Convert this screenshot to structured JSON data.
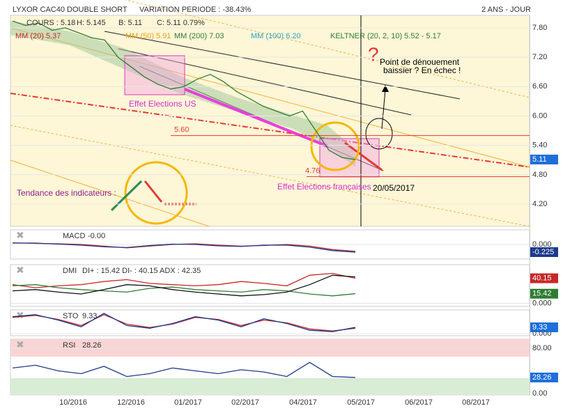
{
  "header": {
    "title": "LYXOR CAC40 DOUBLE SHORT",
    "variation": "VARIATION PERIODE : -38.43%",
    "period": "2 ANS - JOUR"
  },
  "legend": [
    "COURS : 5.18",
    "H: 5.145",
    "B: 5.11",
    "C: 5.11 0.79%",
    "MM (20) 5.37",
    "MM (50) 5.91",
    "MM (200) 7.03",
    "MM (100) 6.20",
    "KELTNER (20, 2, 10) 5.52 - 5.17"
  ],
  "annotations": {
    "us": "Effet Elections US",
    "fr": "Effet Elections françaises",
    "date": "20/05/2017",
    "question": "?",
    "point": "Point de dénouement",
    "point2": "baissier ? En échec !",
    "tendance": "Tendance des indicateurs :"
  },
  "x_axis": [
    "10/2016",
    "12/2016",
    "01/2017",
    "02/2017",
    "04/2017",
    "05/2017",
    "06/2017",
    "08/2017"
  ],
  "chart_data": [
    {
      "type": "line",
      "color": "#2e7d32",
      "values": [
        7.94,
        7.85,
        7.9,
        7.75,
        7.8,
        7.7,
        7.6,
        7.55,
        7.2,
        7.0,
        6.8,
        6.65,
        6.55,
        6.6,
        6.75,
        6.85,
        6.7,
        6.5,
        6.35,
        6.2,
        6.1,
        6.0,
        6.1,
        5.7,
        5.3,
        5.15,
        5.11
      ],
      "ylim": [
        3.745,
        8.056
      ],
      "yticks": [
        {
          "value": 7.8,
          "label": "7.80"
        },
        {
          "value": 7.2,
          "label": "7.20"
        },
        {
          "value": 6.6,
          "label": "6.60"
        },
        {
          "value": 6.0,
          "label": "6.00"
        },
        {
          "value": 5.4,
          "label": "5.40"
        },
        {
          "value": 4.8,
          "label": "4.80"
        },
        {
          "value": 4.2,
          "label": "4.20"
        }
      ],
      "levels": [
        {
          "value": 5.6,
          "label": "5.60"
        },
        {
          "value": 4.76,
          "label": "4.76"
        }
      ],
      "last": [
        {
          "value": 5.11,
          "label": "5.11",
          "color": "#1e6fd9"
        }
      ]
    },
    {
      "type": "line",
      "title": "MACD",
      "subtitle": "-0.00",
      "ylim": [
        -0.43,
        0.43
      ],
      "yticks": [
        {
          "value": 0,
          "label": "0.000"
        }
      ],
      "series": [
        {
          "color": "#c62828",
          "values": [
            0.05,
            0.03,
            0.02,
            0.0,
            -0.05,
            -0.1,
            -0.05,
            0.0,
            0.02,
            -0.02,
            -0.05,
            -0.03,
            0.0,
            -0.05,
            -0.15,
            -0.2
          ]
        },
        {
          "color": "#1e3a8a",
          "values": [
            0.04,
            0.04,
            0.01,
            -0.02,
            -0.07,
            -0.09,
            -0.03,
            0.01,
            0.0,
            -0.04,
            -0.06,
            -0.02,
            -0.02,
            -0.08,
            -0.18,
            -0.225
          ]
        }
      ],
      "last": [
        {
          "value": -0.225,
          "label": "-0.225",
          "color": "#1e3a8a"
        }
      ]
    },
    {
      "type": "line",
      "title": "DMI",
      "subtitle": "DI+ : 15.42 DI- : 40.15 ADX : 42.35",
      "ylim": [
        -5,
        62
      ],
      "yticks": [
        {
          "value": 0,
          "label": "0.000"
        }
      ],
      "series": [
        {
          "color": "#c62828",
          "values": [
            30,
            25,
            28,
            30,
            35,
            38,
            32,
            30,
            28,
            30,
            35,
            32,
            28,
            45,
            48,
            40.15
          ]
        },
        {
          "color": "#2e7d32",
          "values": [
            28,
            30,
            25,
            22,
            20,
            18,
            24,
            26,
            22,
            20,
            18,
            22,
            20,
            15,
            12,
            15.42
          ]
        },
        {
          "color": "#111111",
          "values": [
            20,
            22,
            18,
            15,
            22,
            30,
            28,
            22,
            18,
            15,
            12,
            14,
            18,
            30,
            45,
            42.35
          ]
        }
      ],
      "last": [
        {
          "value": 40.15,
          "label": "40.15",
          "color": "#c62828"
        },
        {
          "value": 15.42,
          "label": "15.42",
          "color": "#2e7d32"
        }
      ]
    },
    {
      "type": "line",
      "title": "STO",
      "subtitle": "9.33",
      "ylim": [
        -3,
        35
      ],
      "yticks": [
        {
          "value": 0,
          "label": "0.000"
        }
      ],
      "series": [
        {
          "color": "#c62828",
          "values": [
            24,
            27,
            21,
            12,
            28,
            14,
            9,
            14,
            24,
            21,
            12,
            20,
            16,
            7,
            4,
            8
          ]
        },
        {
          "color": "#1e3a8a",
          "values": [
            25,
            28,
            20,
            10,
            30,
            12,
            8,
            15,
            25,
            20,
            10,
            22,
            15,
            5,
            3,
            9.33
          ]
        }
      ],
      "last": [
        {
          "value": 9.33,
          "label": "9.33",
          "color": "#1e6fd9"
        }
      ]
    },
    {
      "type": "line",
      "title": "RSI",
      "subtitle": "28.26",
      "ylim": [
        -2.5,
        96
      ],
      "yticks": [
        {
          "value": 80,
          "label": "80.00"
        },
        {
          "value": 0,
          "label": "0.00"
        }
      ],
      "series": [
        {
          "color": "#1e3a8a",
          "values": [
            45,
            50,
            40,
            35,
            48,
            30,
            35,
            45,
            40,
            35,
            42,
            38,
            30,
            55,
            30,
            28.26
          ]
        }
      ],
      "last": [
        {
          "value": 28.26,
          "label": "28.26",
          "color": "#1e6fd9"
        }
      ]
    }
  ]
}
